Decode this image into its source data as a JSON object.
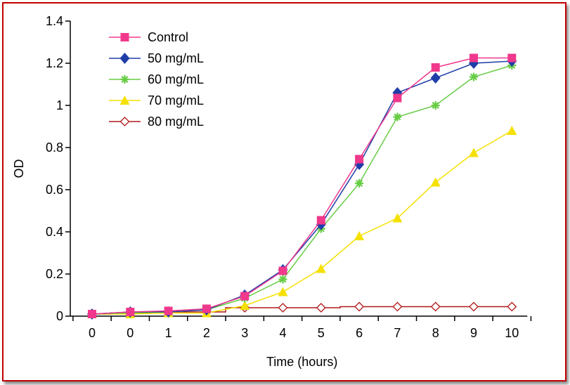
{
  "chart_data": {
    "type": "line",
    "xlabel": "Time (hours)",
    "ylabel": "OD",
    "categories": [
      "0",
      "0",
      "1",
      "2",
      "3",
      "4",
      "5",
      "6",
      "7",
      "8",
      "9",
      "10"
    ],
    "ylim": [
      0,
      1.4
    ],
    "yticks": [
      "0",
      "0.2",
      "0.4",
      "0.6",
      "0.8",
      "1",
      "1.2",
      "1.4"
    ],
    "legend_position": "top-left",
    "grid": false,
    "series": [
      {
        "name": "Control",
        "color": "#f0388c",
        "marker": "square",
        "values": [
          0.01,
          0.02,
          0.025,
          0.035,
          0.095,
          0.215,
          0.455,
          0.745,
          1.035,
          1.18,
          1.225,
          1.225
        ]
      },
      {
        "name": "50 mg/mL",
        "color": "#1f3ea8",
        "marker": "diamond",
        "values": [
          0.01,
          0.02,
          0.02,
          0.03,
          0.1,
          0.22,
          0.435,
          0.72,
          1.06,
          1.13,
          1.2,
          1.21
        ]
      },
      {
        "name": "60 mg/mL",
        "color": "#66cc44",
        "marker": "asterisk",
        "values": [
          0.01,
          0.015,
          0.02,
          0.03,
          0.085,
          0.175,
          0.415,
          0.63,
          0.945,
          1.0,
          1.135,
          1.19
        ]
      },
      {
        "name": "70 mg/mL",
        "color": "#f5e000",
        "marker": "triangle",
        "values": [
          0.01,
          0.01,
          0.015,
          0.015,
          0.05,
          0.115,
          0.225,
          0.38,
          0.465,
          0.635,
          0.775,
          0.88
        ]
      },
      {
        "name": "80 mg/mL",
        "color": "#b01818",
        "marker": "open-diamond",
        "values": [
          0.01,
          0.015,
          0.02,
          0.02,
          0.04,
          0.04,
          0.04,
          0.045,
          0.045,
          0.045,
          0.045,
          0.045
        ]
      }
    ]
  }
}
